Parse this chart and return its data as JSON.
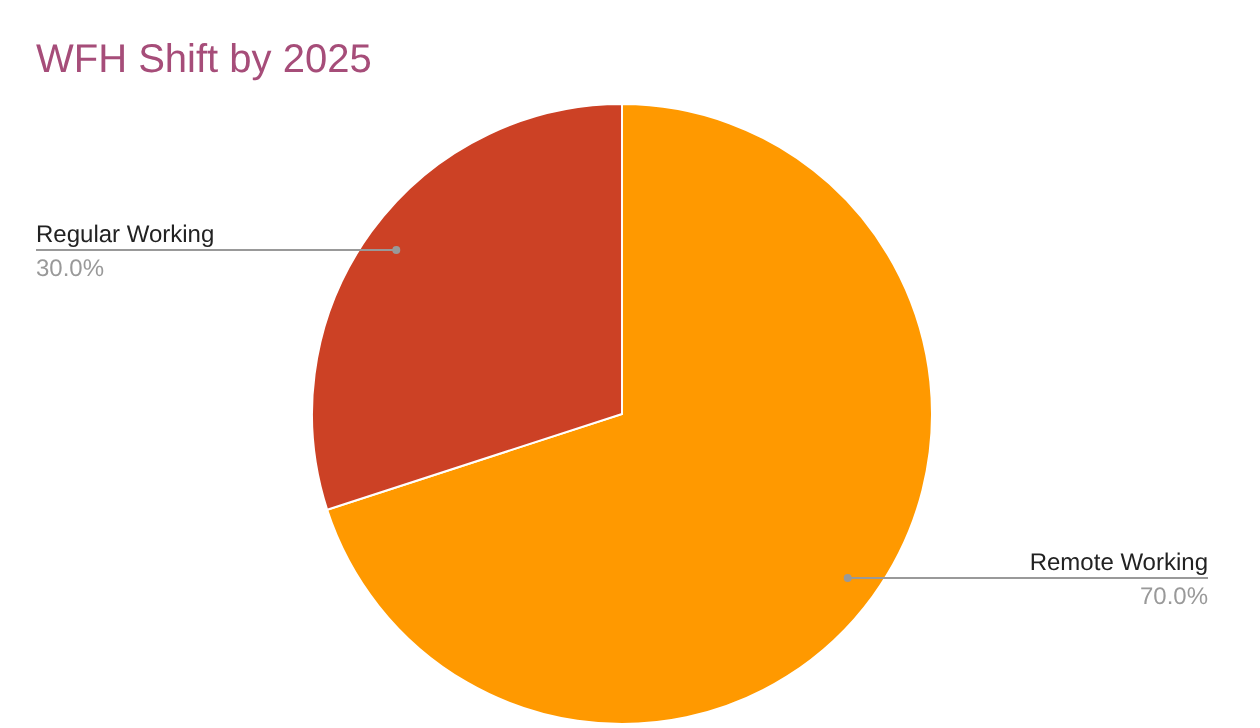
{
  "chart_data": {
    "type": "pie",
    "title": "WFH Shift by 2025",
    "categories": [
      "Remote Working",
      "Regular Working"
    ],
    "values": [
      70,
      30
    ],
    "colors": [
      "#ff9900",
      "#cc4125"
    ],
    "value_labels": [
      "70.0%",
      "30.0%"
    ]
  }
}
